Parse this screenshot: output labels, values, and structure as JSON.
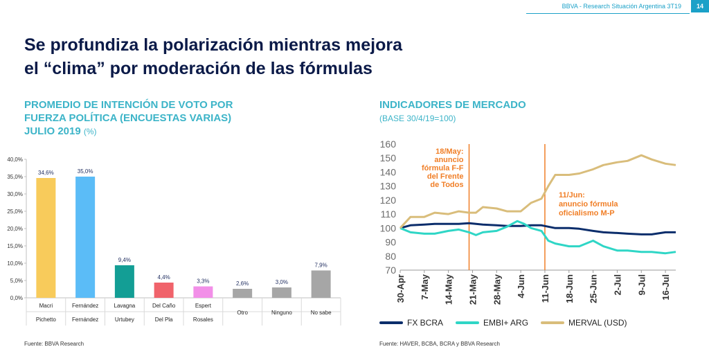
{
  "header": {
    "report": "BBVA - Research Situación Argentina 3T19",
    "page": "14"
  },
  "title_line1": "Se profundiza la polarización mientras mejora",
  "title_line2": "el “clima” por moderación de las fórmulas",
  "left": {
    "title1": "PROMEDIO DE INTENCIÓN DE VOTO POR",
    "title2": "FUERZA POLÍTICA (ENCUESTAS VARIAS)",
    "title3": "JULIO 2019",
    "unit": "(%)",
    "source": "Fuente: BBVA Research"
  },
  "right": {
    "title": "INDICADORES DE MERCADO",
    "subtitle": "(BASE 30/4/19=100)",
    "source": "Fuente: HAVER, BCBA, BCRA y BBVA Research"
  },
  "chart_data": [
    {
      "type": "bar",
      "categories": [
        [
          "Macri",
          "Pichetto"
        ],
        [
          "Fernández",
          "Fernández"
        ],
        [
          "Lavagna",
          "Urtubey"
        ],
        [
          "Del Caño",
          "Del Pla"
        ],
        [
          "Espert",
          "Rosales"
        ],
        [
          "Otro",
          ""
        ],
        [
          "Ninguno",
          ""
        ],
        [
          "No sabe",
          ""
        ]
      ],
      "values": [
        34.6,
        35.0,
        9.4,
        4.4,
        3.3,
        2.6,
        3.0,
        7.9
      ],
      "labels": [
        "34,6%",
        "35,0%",
        "9,4%",
        "4,4%",
        "3,3%",
        "2,6%",
        "3,0%",
        "7,9%"
      ],
      "colors": [
        "#f8cb5b",
        "#5bbcf7",
        "#139e95",
        "#f0636b",
        "#f28fe8",
        "#a6a6a6",
        "#a6a6a6",
        "#a6a6a6"
      ],
      "ylim": [
        0,
        40
      ],
      "yticks": [
        0,
        5,
        10,
        15,
        20,
        25,
        30,
        35,
        40
      ],
      "ytick_labels": [
        "0,0%",
        "5,0%",
        "10,0%",
        "15,0%",
        "20,0%",
        "25,0%",
        "30,0%",
        "35,0%",
        "40,0%"
      ],
      "grid": false
    },
    {
      "type": "line",
      "x_dates": [
        "2019-04-30",
        "2019-05-07",
        "2019-05-14",
        "2019-05-21",
        "2019-05-28",
        "2019-06-04",
        "2019-06-11",
        "2019-06-18",
        "2019-06-25",
        "2019-07-02",
        "2019-07-09",
        "2019-07-16"
      ],
      "x_tick_labels": [
        "30-Apr",
        "7-May",
        "14-May",
        "21-May",
        "28-May",
        "4-Jun",
        "11-Jun",
        "18-Jun",
        "25-Jun",
        "2-Jul",
        "9-Jul",
        "16-Jul"
      ],
      "ylim": [
        70,
        160
      ],
      "yticks": [
        70,
        80,
        90,
        100,
        110,
        120,
        130,
        140,
        150,
        160
      ],
      "series": [
        {
          "name": "FX BCRA",
          "color": "#0b2d6b",
          "x": [
            "2019-04-30",
            "2019-05-03",
            "2019-05-07",
            "2019-05-10",
            "2019-05-14",
            "2019-05-17",
            "2019-05-20",
            "2019-05-24",
            "2019-05-28",
            "2019-05-31",
            "2019-06-04",
            "2019-06-07",
            "2019-06-10",
            "2019-06-14",
            "2019-06-18",
            "2019-06-21",
            "2019-06-25",
            "2019-06-28",
            "2019-07-02",
            "2019-07-05",
            "2019-07-09",
            "2019-07-12",
            "2019-07-16",
            "2019-07-19"
          ],
          "values": [
            100,
            102,
            102.5,
            103,
            103,
            103,
            103.5,
            102.5,
            102,
            101.5,
            101.5,
            102,
            102,
            100,
            100,
            99.5,
            98,
            97,
            96.5,
            96,
            95.5,
            95.5,
            97,
            97
          ]
        },
        {
          "name": "EMBI+ ARG",
          "color": "#2fd6c6",
          "x": [
            "2019-04-30",
            "2019-05-03",
            "2019-05-07",
            "2019-05-10",
            "2019-05-14",
            "2019-05-17",
            "2019-05-20",
            "2019-05-22",
            "2019-05-24",
            "2019-05-28",
            "2019-05-31",
            "2019-06-03",
            "2019-06-05",
            "2019-06-07",
            "2019-06-10",
            "2019-06-12",
            "2019-06-14",
            "2019-06-18",
            "2019-06-21",
            "2019-06-25",
            "2019-06-28",
            "2019-07-02",
            "2019-07-05",
            "2019-07-09",
            "2019-07-12",
            "2019-07-16",
            "2019-07-19"
          ],
          "values": [
            100,
            97,
            96,
            96,
            98,
            99,
            97,
            95,
            97,
            98,
            101,
            105,
            103,
            100,
            98,
            91,
            89,
            87,
            87,
            91,
            87,
            84,
            84,
            83,
            83,
            82,
            83
          ]
        },
        {
          "name": "MERVAL (USD)",
          "color": "#d9bd7b",
          "x": [
            "2019-04-30",
            "2019-05-03",
            "2019-05-07",
            "2019-05-10",
            "2019-05-14",
            "2019-05-17",
            "2019-05-20",
            "2019-05-22",
            "2019-05-24",
            "2019-05-28",
            "2019-05-31",
            "2019-06-04",
            "2019-06-07",
            "2019-06-10",
            "2019-06-12",
            "2019-06-14",
            "2019-06-18",
            "2019-06-21",
            "2019-06-25",
            "2019-06-28",
            "2019-07-02",
            "2019-07-05",
            "2019-07-09",
            "2019-07-12",
            "2019-07-16",
            "2019-07-19"
          ],
          "values": [
            100,
            108,
            108,
            111,
            110,
            112,
            111,
            111,
            115,
            114,
            112,
            112,
            118,
            121,
            130,
            138,
            138,
            139,
            142,
            145,
            147,
            148,
            152,
            149,
            146,
            145
          ]
        }
      ],
      "annotations": [
        {
          "date": "2019-05-20",
          "lines": [
            "18/May:",
            "anuncio",
            "fórmula F-F",
            "del Frente",
            "de Todos"
          ]
        },
        {
          "date": "2019-06-11",
          "lines": [
            "11/Jun:",
            "anuncio fórmula",
            "oficialismo M-P"
          ]
        }
      ],
      "annotation_color": "#f07e26",
      "legend": "bottom"
    }
  ]
}
